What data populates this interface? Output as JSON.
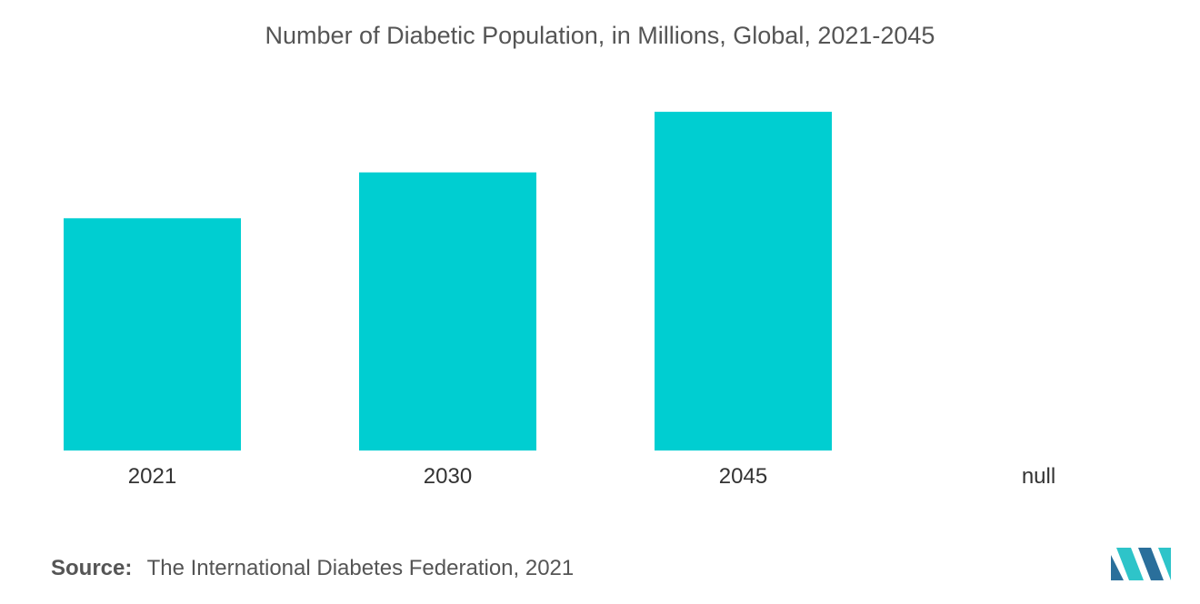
{
  "title": "Number of Diabetic Population, in Millions, Global, 2021-2045",
  "source": {
    "label": "Source:",
    "text": "The International Diabetes Federation, 2021"
  },
  "logo_icon": "mordor-intelligence-logo-icon",
  "colors": {
    "bar": "#00CED1",
    "logo_dark": "#2A6F9B",
    "logo_light": "#2EC4C9"
  },
  "chart_data": {
    "type": "bar",
    "categories": [
      "2021",
      "2030",
      "2045",
      "null"
    ],
    "values": [
      537,
      643,
      783,
      null
    ],
    "ylim": [
      0,
      800
    ],
    "grid": false,
    "legend": "none"
  }
}
